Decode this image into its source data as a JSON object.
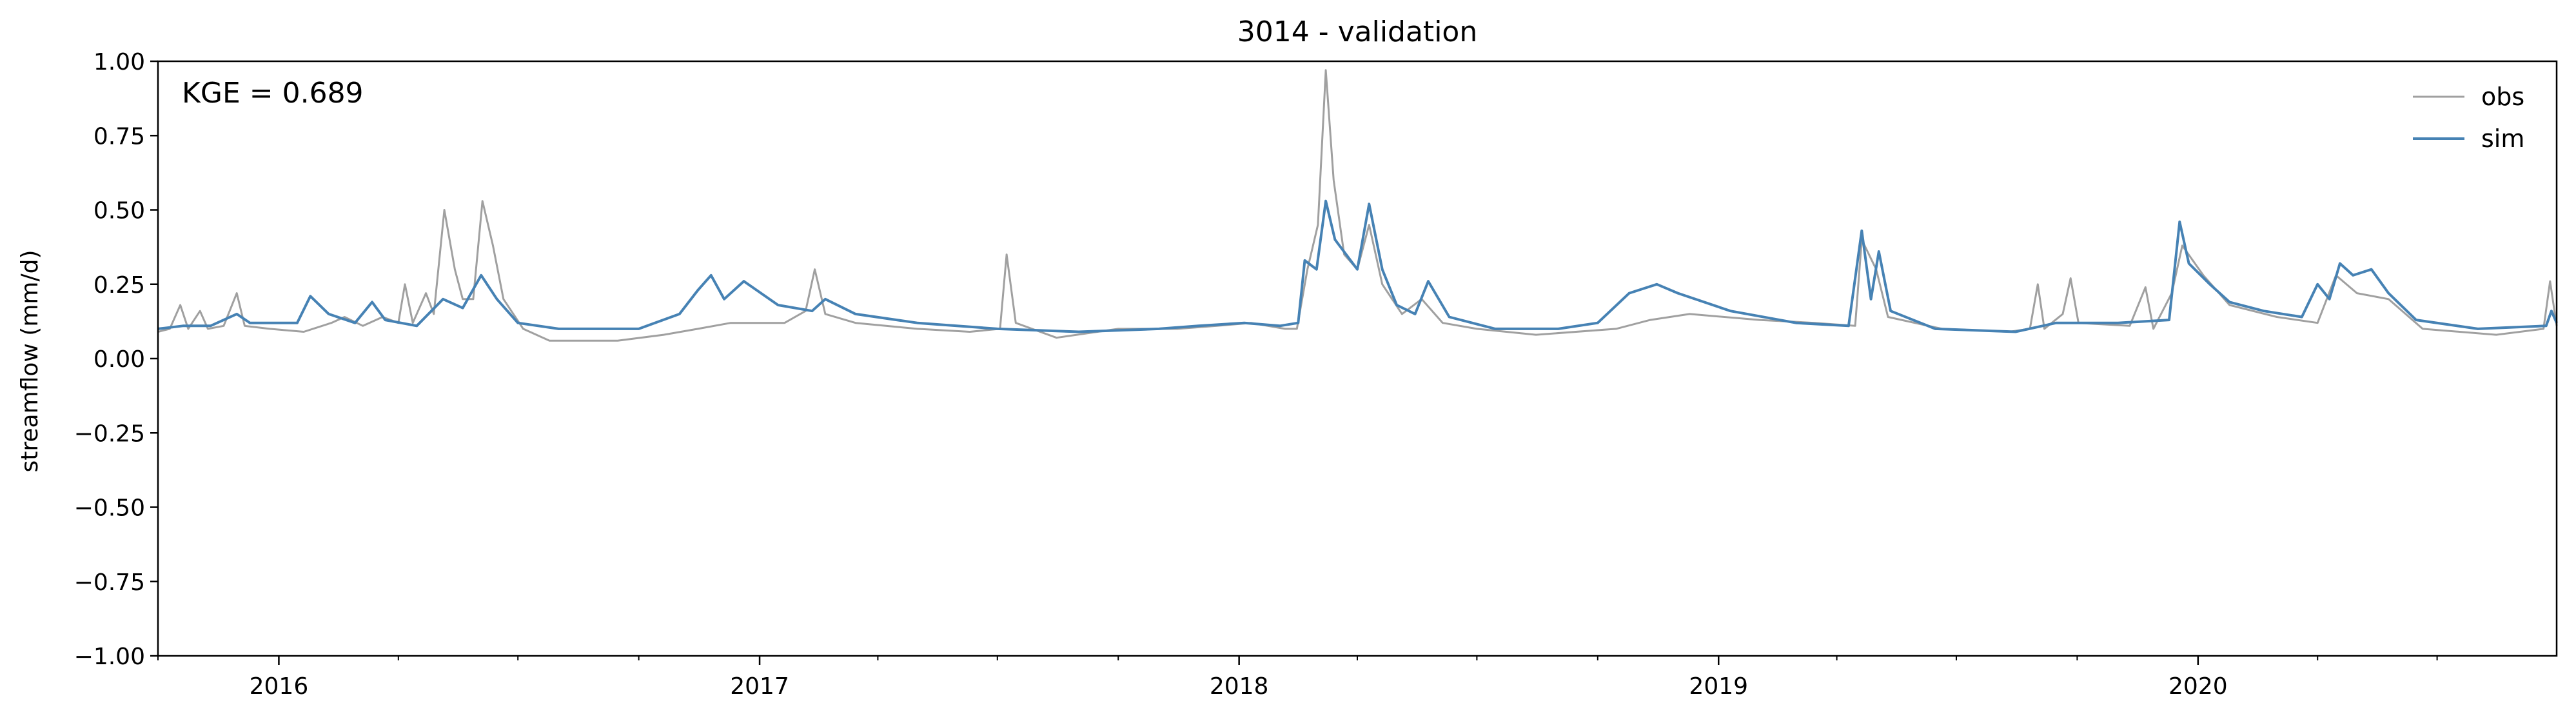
{
  "chart_data": {
    "type": "line",
    "title": "3014 - validation",
    "xlabel": "",
    "ylabel": "streamflow (mm/d)",
    "annotation": "KGE = 0.689",
    "xlim": [
      "2015-10-01",
      "2020-09-30"
    ],
    "ylim": [
      -1.0,
      1.0
    ],
    "yticks": [
      -1.0,
      -0.75,
      -0.5,
      -0.25,
      0.0,
      0.25,
      0.5,
      0.75,
      1.0
    ],
    "ytick_labels": [
      "−1.00",
      "−0.75",
      "−0.50",
      "−0.25",
      "0.00",
      "0.25",
      "0.50",
      "0.75",
      "1.00"
    ],
    "xticks_major": [
      "2016-01-01",
      "2017-01-01",
      "2018-01-01",
      "2019-01-01",
      "2020-01-01"
    ],
    "xtick_labels": [
      "2016",
      "2017",
      "2018",
      "2019",
      "2020"
    ],
    "grid": false,
    "legend_position": "top-right",
    "series": [
      {
        "name": "obs",
        "color": "#a0a0a0",
        "points": [
          [
            "2015-10-01",
            0.09
          ],
          [
            "2015-10-10",
            0.1
          ],
          [
            "2015-10-18",
            0.18
          ],
          [
            "2015-10-24",
            0.1
          ],
          [
            "2015-11-02",
            0.16
          ],
          [
            "2015-11-08",
            0.1
          ],
          [
            "2015-11-20",
            0.11
          ],
          [
            "2015-11-30",
            0.22
          ],
          [
            "2015-12-06",
            0.11
          ],
          [
            "2015-12-25",
            0.1
          ],
          [
            "2016-01-20",
            0.09
          ],
          [
            "2016-02-10",
            0.12
          ],
          [
            "2016-02-20",
            0.14
          ],
          [
            "2016-03-05",
            0.11
          ],
          [
            "2016-03-20",
            0.14
          ],
          [
            "2016-04-01",
            0.12
          ],
          [
            "2016-04-06",
            0.25
          ],
          [
            "2016-04-12",
            0.12
          ],
          [
            "2016-04-22",
            0.22
          ],
          [
            "2016-04-28",
            0.15
          ],
          [
            "2016-05-06",
            0.5
          ],
          [
            "2016-05-14",
            0.3
          ],
          [
            "2016-05-20",
            0.2
          ],
          [
            "2016-05-28",
            0.2
          ],
          [
            "2016-06-04",
            0.53
          ],
          [
            "2016-06-12",
            0.38
          ],
          [
            "2016-06-20",
            0.2
          ],
          [
            "2016-07-05",
            0.1
          ],
          [
            "2016-07-25",
            0.06
          ],
          [
            "2016-09-15",
            0.06
          ],
          [
            "2016-10-20",
            0.08
          ],
          [
            "2016-11-15",
            0.1
          ],
          [
            "2016-12-10",
            0.12
          ],
          [
            "2017-01-20",
            0.12
          ],
          [
            "2017-02-05",
            0.16
          ],
          [
            "2017-02-12",
            0.3
          ],
          [
            "2017-02-20",
            0.15
          ],
          [
            "2017-03-15",
            0.12
          ],
          [
            "2017-05-01",
            0.1
          ],
          [
            "2017-06-10",
            0.09
          ],
          [
            "2017-07-03",
            0.1
          ],
          [
            "2017-07-08",
            0.35
          ],
          [
            "2017-07-15",
            0.12
          ],
          [
            "2017-08-15",
            0.07
          ],
          [
            "2017-10-01",
            0.1
          ],
          [
            "2017-11-15",
            0.1
          ],
          [
            "2017-12-15",
            0.11
          ],
          [
            "2018-01-10",
            0.12
          ],
          [
            "2018-02-05",
            0.1
          ],
          [
            "2018-02-14",
            0.1
          ],
          [
            "2018-02-22",
            0.3
          ],
          [
            "2018-03-02",
            0.45
          ],
          [
            "2018-03-08",
            0.97
          ],
          [
            "2018-03-14",
            0.6
          ],
          [
            "2018-03-22",
            0.35
          ],
          [
            "2018-04-01",
            0.3
          ],
          [
            "2018-04-10",
            0.45
          ],
          [
            "2018-04-20",
            0.25
          ],
          [
            "2018-05-05",
            0.15
          ],
          [
            "2018-05-20",
            0.2
          ],
          [
            "2018-06-05",
            0.12
          ],
          [
            "2018-07-01",
            0.1
          ],
          [
            "2018-08-15",
            0.08
          ],
          [
            "2018-10-15",
            0.1
          ],
          [
            "2018-11-10",
            0.13
          ],
          [
            "2018-12-10",
            0.15
          ],
          [
            "2019-02-01",
            0.13
          ],
          [
            "2019-03-15",
            0.12
          ],
          [
            "2019-04-15",
            0.11
          ],
          [
            "2019-04-20",
            0.4
          ],
          [
            "2019-05-01",
            0.3
          ],
          [
            "2019-05-10",
            0.14
          ],
          [
            "2019-06-20",
            0.1
          ],
          [
            "2019-08-10",
            0.09
          ],
          [
            "2019-08-26",
            0.1
          ],
          [
            "2019-09-01",
            0.25
          ],
          [
            "2019-09-06",
            0.1
          ],
          [
            "2019-09-20",
            0.15
          ],
          [
            "2019-09-26",
            0.27
          ],
          [
            "2019-10-02",
            0.12
          ],
          [
            "2019-11-10",
            0.11
          ],
          [
            "2019-11-22",
            0.24
          ],
          [
            "2019-11-28",
            0.1
          ],
          [
            "2019-12-12",
            0.22
          ],
          [
            "2019-12-20",
            0.38
          ],
          [
            "2020-01-05",
            0.28
          ],
          [
            "2020-01-25",
            0.18
          ],
          [
            "2020-03-01",
            0.14
          ],
          [
            "2020-04-01",
            0.12
          ],
          [
            "2020-04-15",
            0.28
          ],
          [
            "2020-05-01",
            0.22
          ],
          [
            "2020-05-25",
            0.2
          ],
          [
            "2020-06-20",
            0.1
          ],
          [
            "2020-08-15",
            0.08
          ],
          [
            "2020-09-20",
            0.1
          ],
          [
            "2020-09-25",
            0.26
          ],
          [
            "2020-09-30",
            0.11
          ]
        ]
      },
      {
        "name": "sim",
        "color": "#4682b4",
        "points": [
          [
            "2015-10-01",
            0.1
          ],
          [
            "2015-10-20",
            0.11
          ],
          [
            "2015-11-10",
            0.11
          ],
          [
            "2015-11-30",
            0.15
          ],
          [
            "2015-12-10",
            0.12
          ],
          [
            "2016-01-15",
            0.12
          ],
          [
            "2016-01-25",
            0.21
          ],
          [
            "2016-02-08",
            0.15
          ],
          [
            "2016-02-28",
            0.12
          ],
          [
            "2016-03-12",
            0.19
          ],
          [
            "2016-03-22",
            0.13
          ],
          [
            "2016-04-15",
            0.11
          ],
          [
            "2016-05-05",
            0.2
          ],
          [
            "2016-05-20",
            0.17
          ],
          [
            "2016-06-03",
            0.28
          ],
          [
            "2016-06-15",
            0.2
          ],
          [
            "2016-07-01",
            0.12
          ],
          [
            "2016-08-01",
            0.1
          ],
          [
            "2016-10-01",
            0.1
          ],
          [
            "2016-11-01",
            0.15
          ],
          [
            "2016-11-15",
            0.23
          ],
          [
            "2016-11-25",
            0.28
          ],
          [
            "2016-12-05",
            0.2
          ],
          [
            "2016-12-20",
            0.26
          ],
          [
            "2017-01-15",
            0.18
          ],
          [
            "2017-02-10",
            0.16
          ],
          [
            "2017-02-20",
            0.2
          ],
          [
            "2017-03-15",
            0.15
          ],
          [
            "2017-05-01",
            0.12
          ],
          [
            "2017-07-01",
            0.1
          ],
          [
            "2017-09-01",
            0.09
          ],
          [
            "2017-11-01",
            0.1
          ],
          [
            "2017-12-01",
            0.11
          ],
          [
            "2018-01-05",
            0.12
          ],
          [
            "2018-02-01",
            0.11
          ],
          [
            "2018-02-15",
            0.12
          ],
          [
            "2018-02-20",
            0.33
          ],
          [
            "2018-03-01",
            0.3
          ],
          [
            "2018-03-08",
            0.53
          ],
          [
            "2018-03-15",
            0.4
          ],
          [
            "2018-04-01",
            0.3
          ],
          [
            "2018-04-10",
            0.52
          ],
          [
            "2018-04-20",
            0.3
          ],
          [
            "2018-05-01",
            0.18
          ],
          [
            "2018-05-15",
            0.15
          ],
          [
            "2018-05-25",
            0.26
          ],
          [
            "2018-06-10",
            0.14
          ],
          [
            "2018-07-15",
            0.1
          ],
          [
            "2018-09-01",
            0.1
          ],
          [
            "2018-10-01",
            0.12
          ],
          [
            "2018-10-25",
            0.22
          ],
          [
            "2018-11-15",
            0.25
          ],
          [
            "2018-12-01",
            0.22
          ],
          [
            "2019-01-10",
            0.16
          ],
          [
            "2019-03-01",
            0.12
          ],
          [
            "2019-04-10",
            0.11
          ],
          [
            "2019-04-20",
            0.43
          ],
          [
            "2019-04-27",
            0.2
          ],
          [
            "2019-05-03",
            0.36
          ],
          [
            "2019-05-12",
            0.16
          ],
          [
            "2019-06-15",
            0.1
          ],
          [
            "2019-08-15",
            0.09
          ],
          [
            "2019-09-15",
            0.12
          ],
          [
            "2019-11-01",
            0.12
          ],
          [
            "2019-12-10",
            0.13
          ],
          [
            "2019-12-18",
            0.46
          ],
          [
            "2019-12-25",
            0.32
          ],
          [
            "2020-01-10",
            0.25
          ],
          [
            "2020-01-25",
            0.19
          ],
          [
            "2020-02-20",
            0.16
          ],
          [
            "2020-03-20",
            0.14
          ],
          [
            "2020-04-01",
            0.25
          ],
          [
            "2020-04-10",
            0.2
          ],
          [
            "2020-04-18",
            0.32
          ],
          [
            "2020-04-28",
            0.28
          ],
          [
            "2020-05-12",
            0.3
          ],
          [
            "2020-05-25",
            0.22
          ],
          [
            "2020-06-15",
            0.13
          ],
          [
            "2020-08-01",
            0.1
          ],
          [
            "2020-09-22",
            0.11
          ],
          [
            "2020-09-26",
            0.16
          ],
          [
            "2020-09-30",
            0.12
          ]
        ]
      }
    ]
  }
}
